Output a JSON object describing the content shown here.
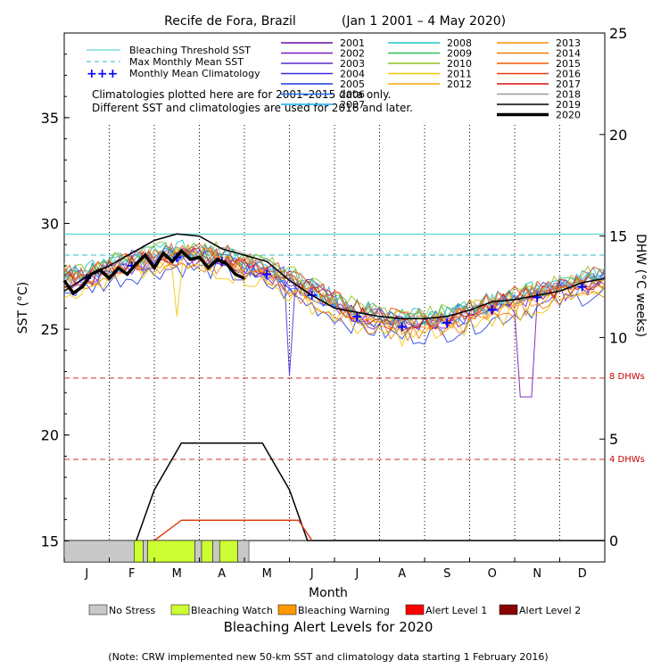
{
  "chart_data": {
    "type": "line",
    "title": "Recife de Fora, Brazil",
    "date_range": "(Jan 1 2001 – 4 May 2020)",
    "xlabel": "Month",
    "ylabel_left": "SST (°C)",
    "ylabel_right": "DHW (°C weeks)",
    "months": [
      "J",
      "F",
      "M",
      "A",
      "M",
      "J",
      "J",
      "A",
      "S",
      "O",
      "N",
      "D"
    ],
    "ylim_sst": [
      14,
      39
    ],
    "yticks_sst": [
      15,
      20,
      25,
      30,
      35
    ],
    "ylim_dhw": [
      0,
      25
    ],
    "yticks_dhw": [
      0,
      5,
      10,
      15,
      20,
      25
    ],
    "bleaching_threshold_sst": 29.5,
    "max_monthly_mean_sst": 28.5,
    "dhw_thresholds": [
      {
        "value": 8,
        "label": "8 DHWs"
      },
      {
        "value": 4,
        "label": "4 DHWs"
      }
    ],
    "note_lines": [
      "Climatologies plotted here are for 2001–2015 data only.",
      "Different SST and climatologies are used for 2016 and later."
    ],
    "legend_lines": [
      {
        "label": "Bleaching Threshold SST",
        "color": "#33cccc",
        "dash": "solid"
      },
      {
        "label": "Max Monthly Mean SST",
        "color": "#33bbcc",
        "dash": "dashed"
      },
      {
        "label": "Monthly Mean Climatology",
        "color": "#0000ff",
        "dash": "plus"
      }
    ],
    "years": [
      {
        "label": "2001",
        "color": "#6a0dad"
      },
      {
        "label": "2002",
        "color": "#7a1fc8"
      },
      {
        "label": "2003",
        "color": "#5a2bd0"
      },
      {
        "label": "2004",
        "color": "#3a2ad8"
      },
      {
        "label": "2005",
        "color": "#1e3ae0"
      },
      {
        "label": "2006",
        "color": "#1e6ef0"
      },
      {
        "label": "2007",
        "color": "#12aaf0"
      },
      {
        "label": "2008",
        "color": "#18c8c8"
      },
      {
        "label": "2009",
        "color": "#2ebf5a"
      },
      {
        "label": "2010",
        "color": "#8cbf1e"
      },
      {
        "label": "2011",
        "color": "#f5c400"
      },
      {
        "label": "2012",
        "color": "#f5a800"
      },
      {
        "label": "2013",
        "color": "#f59300"
      },
      {
        "label": "2014",
        "color": "#f07a00"
      },
      {
        "label": "2015",
        "color": "#f05a00"
      },
      {
        "label": "2016",
        "color": "#e83a10"
      },
      {
        "label": "2017",
        "color": "#e01010"
      },
      {
        "label": "2018",
        "color": "#999999"
      },
      {
        "label": "2019",
        "color": "#000000"
      },
      {
        "label": "2020",
        "color": "#000000"
      }
    ],
    "climatology": [
      {
        "x": 0.5,
        "y": 27.4
      },
      {
        "x": 1.5,
        "y": 28.0
      },
      {
        "x": 2.5,
        "y": 28.4
      },
      {
        "x": 3.5,
        "y": 28.2
      },
      {
        "x": 4.5,
        "y": 27.6
      },
      {
        "x": 5.5,
        "y": 26.6
      },
      {
        "x": 6.5,
        "y": 25.6
      },
      {
        "x": 7.5,
        "y": 25.1
      },
      {
        "x": 8.5,
        "y": 25.3
      },
      {
        "x": 9.5,
        "y": 25.9
      },
      {
        "x": 10.5,
        "y": 26.5
      },
      {
        "x": 11.5,
        "y": 27.0
      }
    ],
    "sst_2019": [
      {
        "x": 0.0,
        "y": 26.8
      },
      {
        "x": 0.5,
        "y": 27.5
      },
      {
        "x": 1.0,
        "y": 28.0
      },
      {
        "x": 1.5,
        "y": 28.6
      },
      {
        "x": 2.0,
        "y": 29.2
      },
      {
        "x": 2.5,
        "y": 29.5
      },
      {
        "x": 3.0,
        "y": 29.4
      },
      {
        "x": 3.5,
        "y": 28.8
      },
      {
        "x": 4.0,
        "y": 28.5
      },
      {
        "x": 4.5,
        "y": 28.2
      },
      {
        "x": 5.0,
        "y": 27.3
      },
      {
        "x": 5.5,
        "y": 26.6
      },
      {
        "x": 6.0,
        "y": 26.0
      },
      {
        "x": 6.5,
        "y": 25.8
      },
      {
        "x": 7.0,
        "y": 25.6
      },
      {
        "x": 7.5,
        "y": 25.5
      },
      {
        "x": 8.0,
        "y": 25.5
      },
      {
        "x": 8.5,
        "y": 25.6
      },
      {
        "x": 9.0,
        "y": 25.9
      },
      {
        "x": 9.5,
        "y": 26.3
      },
      {
        "x": 10.0,
        "y": 26.4
      },
      {
        "x": 10.5,
        "y": 26.6
      },
      {
        "x": 11.0,
        "y": 26.8
      },
      {
        "x": 11.5,
        "y": 27.2
      },
      {
        "x": 12.0,
        "y": 27.4
      }
    ],
    "sst_2020": [
      {
        "x": 0.0,
        "y": 27.3
      },
      {
        "x": 0.2,
        "y": 26.7
      },
      {
        "x": 0.4,
        "y": 27.0
      },
      {
        "x": 0.6,
        "y": 27.6
      },
      {
        "x": 0.8,
        "y": 27.8
      },
      {
        "x": 1.0,
        "y": 27.4
      },
      {
        "x": 1.2,
        "y": 27.9
      },
      {
        "x": 1.4,
        "y": 27.6
      },
      {
        "x": 1.6,
        "y": 28.1
      },
      {
        "x": 1.8,
        "y": 28.5
      },
      {
        "x": 2.0,
        "y": 27.9
      },
      {
        "x": 2.2,
        "y": 28.6
      },
      {
        "x": 2.4,
        "y": 28.2
      },
      {
        "x": 2.6,
        "y": 28.7
      },
      {
        "x": 2.8,
        "y": 28.3
      },
      {
        "x": 3.0,
        "y": 28.4
      },
      {
        "x": 3.2,
        "y": 27.9
      },
      {
        "x": 3.4,
        "y": 28.3
      },
      {
        "x": 3.6,
        "y": 28.1
      },
      {
        "x": 3.8,
        "y": 27.6
      },
      {
        "x": 4.0,
        "y": 27.4
      }
    ],
    "dhw_2019": [
      {
        "x": 1.6,
        "y": 0.0
      },
      {
        "x": 2.0,
        "y": 2.5
      },
      {
        "x": 2.6,
        "y": 4.8
      },
      {
        "x": 3.5,
        "y": 4.8
      },
      {
        "x": 4.4,
        "y": 4.8
      },
      {
        "x": 5.0,
        "y": 2.5
      },
      {
        "x": 5.4,
        "y": 0.0
      },
      {
        "x": 12.0,
        "y": 0.0
      }
    ],
    "dhw_2017": [
      {
        "x": 2.0,
        "y": 0.0
      },
      {
        "x": 2.6,
        "y": 1.0
      },
      {
        "x": 4.5,
        "y": 1.0
      },
      {
        "x": 5.2,
        "y": 1.0
      },
      {
        "x": 5.5,
        "y": 0.0
      }
    ],
    "alert_bar": [
      {
        "from": 0.0,
        "to": 1.55,
        "level": "no_stress"
      },
      {
        "from": 1.55,
        "to": 1.75,
        "level": "watch"
      },
      {
        "from": 1.75,
        "to": 1.85,
        "level": "no_stress"
      },
      {
        "from": 1.85,
        "to": 2.9,
        "level": "watch"
      },
      {
        "from": 2.9,
        "to": 3.05,
        "level": "no_stress"
      },
      {
        "from": 3.05,
        "to": 3.3,
        "level": "watch"
      },
      {
        "from": 3.3,
        "to": 3.45,
        "level": "no_stress"
      },
      {
        "from": 3.45,
        "to": 3.85,
        "level": "watch"
      },
      {
        "from": 3.85,
        "to": 4.1,
        "level": "no_stress"
      }
    ],
    "alert_legend": [
      {
        "label": "No Stress",
        "color": "#c8c8c8"
      },
      {
        "label": "Bleaching Watch",
        "color": "#ccff33"
      },
      {
        "label": "Bleaching Warning",
        "color": "#ff9900"
      },
      {
        "label": "Alert Level 1",
        "color": "#ff0000"
      },
      {
        "label": "Alert Level 2",
        "color": "#8b0000"
      }
    ],
    "alert_title": "Bleaching Alert Levels for 2020",
    "footnote": "(Note: CRW implemented new 50-km SST and climatology data starting 1 February 2016)"
  }
}
